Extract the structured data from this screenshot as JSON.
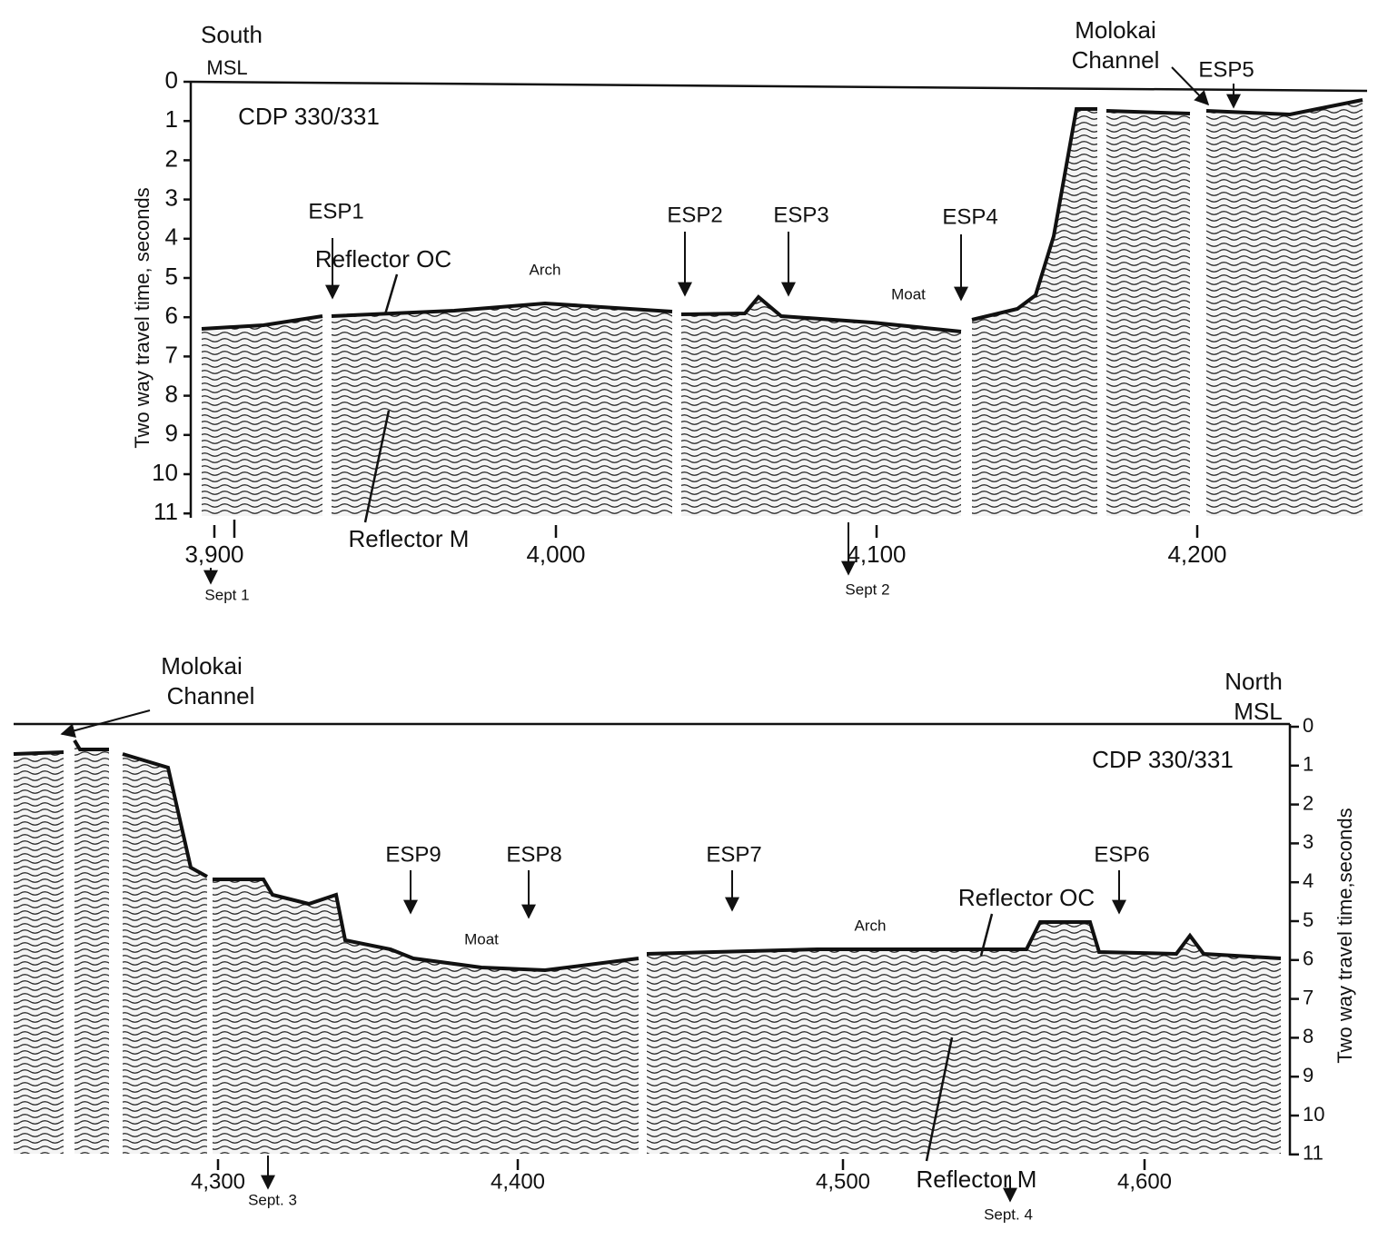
{
  "top_panel": {
    "direction": "South",
    "datum": "MSL",
    "title": "CDP 330/331",
    "y_axis_label": "Two way travel time, seconds",
    "y_ticks": [
      "0",
      "1",
      "2",
      "3",
      "4",
      "5",
      "6",
      "7",
      "8",
      "9",
      "10",
      "11"
    ],
    "x_ticks": [
      "3,900",
      "4,000",
      "4,100",
      "4,200"
    ],
    "dates": [
      "Sept 1",
      "Sept 2"
    ],
    "esp": [
      "ESP1",
      "ESP2",
      "ESP3",
      "ESP4",
      "ESP5"
    ],
    "features": [
      "Reflector OC",
      "Reflector M",
      "Arch",
      "Moat"
    ],
    "channel": [
      "Molokai",
      "Channel"
    ]
  },
  "bottom_panel": {
    "direction": "North",
    "datum": "MSL",
    "title": "CDP 330/331",
    "y_axis_label": "Two way travel time,seconds",
    "y_ticks": [
      "0",
      "1",
      "2",
      "3",
      "4",
      "5",
      "6",
      "7",
      "8",
      "9",
      "10",
      "11"
    ],
    "x_ticks": [
      "4,300",
      "4,400",
      "4,500",
      "4,600"
    ],
    "dates": [
      "Sept. 3",
      "Sept. 4"
    ],
    "esp": [
      "ESP9",
      "ESP8",
      "ESP7",
      "ESP6"
    ],
    "features": [
      "Reflector OC",
      "Reflector M",
      "Arch",
      "Moat"
    ],
    "channel": [
      "Molokai",
      "Channel"
    ]
  }
}
